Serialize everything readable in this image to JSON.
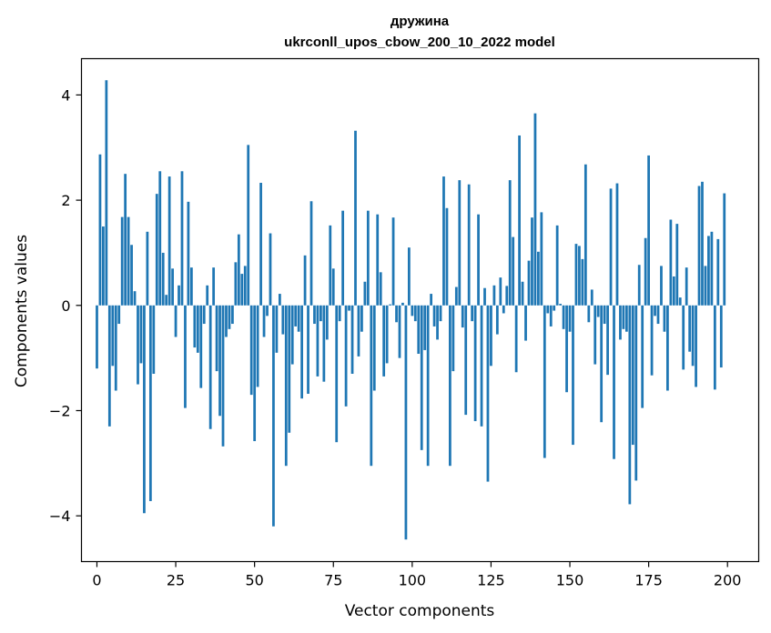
{
  "chart_data": {
    "type": "bar",
    "title": "дружина",
    "subtitle": "ukrconll_upos_cbow_200_10_2022 model",
    "xlabel": "Vector components",
    "ylabel": "Components values",
    "xlim": [
      -4.9,
      209.9
    ],
    "ylim": [
      -4.87,
      4.69
    ],
    "xticks": [
      0,
      25,
      50,
      75,
      100,
      125,
      150,
      175,
      200
    ],
    "yticks": [
      -4,
      -2,
      0,
      2,
      4
    ],
    "ytick_labels": [
      "−4",
      "−2",
      "0",
      "2",
      "4"
    ],
    "grid": false,
    "bar_color": "#1f77b4",
    "x": [
      0,
      1,
      2,
      3,
      4,
      5,
      6,
      7,
      8,
      9,
      10,
      11,
      12,
      13,
      14,
      15,
      16,
      17,
      18,
      19,
      20,
      21,
      22,
      23,
      24,
      25,
      26,
      27,
      28,
      29,
      30,
      31,
      32,
      33,
      34,
      35,
      36,
      37,
      38,
      39,
      40,
      41,
      42,
      43,
      44,
      45,
      46,
      47,
      48,
      49,
      50,
      51,
      52,
      53,
      54,
      55,
      56,
      57,
      58,
      59,
      60,
      61,
      62,
      63,
      64,
      65,
      66,
      67,
      68,
      69,
      70,
      71,
      72,
      73,
      74,
      75,
      76,
      77,
      78,
      79,
      80,
      81,
      82,
      83,
      84,
      85,
      86,
      87,
      88,
      89,
      90,
      91,
      92,
      93,
      94,
      95,
      96,
      97,
      98,
      99,
      100,
      101,
      102,
      103,
      104,
      105,
      106,
      107,
      108,
      109,
      110,
      111,
      112,
      113,
      114,
      115,
      116,
      117,
      118,
      119,
      120,
      121,
      122,
      123,
      124,
      125,
      126,
      127,
      128,
      129,
      130,
      131,
      132,
      133,
      134,
      135,
      136,
      137,
      138,
      139,
      140,
      141,
      142,
      143,
      144,
      145,
      146,
      147,
      148,
      149,
      150,
      151,
      152,
      153,
      154,
      155,
      156,
      157,
      158,
      159,
      160,
      161,
      162,
      163,
      164,
      165,
      166,
      167,
      168,
      169,
      170,
      171,
      172,
      173,
      174,
      175,
      176,
      177,
      178,
      179,
      180,
      181,
      182,
      183,
      184,
      185,
      186,
      187,
      188,
      189,
      190,
      191,
      192,
      193,
      194,
      195,
      196,
      197,
      198,
      199
    ],
    "values": [
      -1.2,
      2.87,
      1.5,
      4.28,
      -2.3,
      -1.15,
      -1.62,
      -0.35,
      1.68,
      2.5,
      1.68,
      1.15,
      0.27,
      -1.5,
      -1.1,
      -3.95,
      1.4,
      -3.72,
      -1.3,
      2.12,
      2.55,
      1.0,
      0.2,
      2.45,
      0.7,
      -0.6,
      0.38,
      2.55,
      -1.95,
      1.97,
      0.72,
      -0.8,
      -0.9,
      -1.57,
      -0.35,
      0.38,
      -2.35,
      0.72,
      -1.25,
      -2.1,
      -2.68,
      -0.6,
      -0.45,
      -0.35,
      0.82,
      1.35,
      0.6,
      0.75,
      3.05,
      -1.7,
      -2.58,
      -1.55,
      2.33,
      -0.6,
      -0.2,
      1.37,
      -4.2,
      -0.9,
      0.22,
      -0.55,
      -3.05,
      -2.42,
      -1.12,
      -0.4,
      -0.5,
      -1.77,
      0.95,
      -1.68,
      1.98,
      -0.35,
      -1.35,
      -0.3,
      -1.45,
      -0.65,
      1.52,
      0.7,
      -2.6,
      -0.3,
      1.8,
      -1.92,
      -0.1,
      -1.3,
      3.32,
      -0.97,
      -0.5,
      0.45,
      1.8,
      -3.05,
      -1.62,
      1.73,
      0.63,
      -1.35,
      -1.1,
      0.02,
      1.67,
      -0.32,
      -1.0,
      0.05,
      -4.45,
      1.1,
      -0.2,
      -0.3,
      -0.92,
      -2.75,
      -0.85,
      -3.05,
      0.22,
      -0.4,
      -0.65,
      -0.3,
      2.45,
      1.85,
      -3.05,
      -1.25,
      0.35,
      2.38,
      -0.42,
      -2.08,
      2.3,
      -0.3,
      -2.2,
      1.73,
      -2.3,
      0.33,
      -3.35,
      -1.15,
      0.38,
      -0.55,
      0.53,
      -0.15,
      0.37,
      2.38,
      1.3,
      -1.27,
      3.23,
      0.45,
      -0.67,
      0.85,
      1.67,
      3.65,
      1.02,
      1.77,
      -2.9,
      -0.15,
      -0.4,
      -0.1,
      1.52,
      0.03,
      -0.45,
      -1.65,
      -0.5,
      -2.65,
      1.17,
      1.13,
      0.88,
      2.68,
      -0.32,
      0.3,
      -1.12,
      -0.22,
      -2.22,
      -0.35,
      -1.32,
      2.22,
      -2.92,
      2.32,
      -0.65,
      -0.45,
      -0.5,
      -3.78,
      -2.65,
      -3.33,
      0.77,
      -1.95,
      1.28,
      2.85,
      -1.33,
      -0.2,
      -0.35,
      0.75,
      -0.5,
      -1.62,
      1.63,
      0.55,
      1.55,
      0.15,
      -1.22,
      0.72,
      -0.88,
      -1.15,
      -1.55,
      2.27,
      2.35,
      0.75,
      1.32,
      1.4,
      -1.6,
      1.26,
      -1.18,
      2.13
    ]
  }
}
